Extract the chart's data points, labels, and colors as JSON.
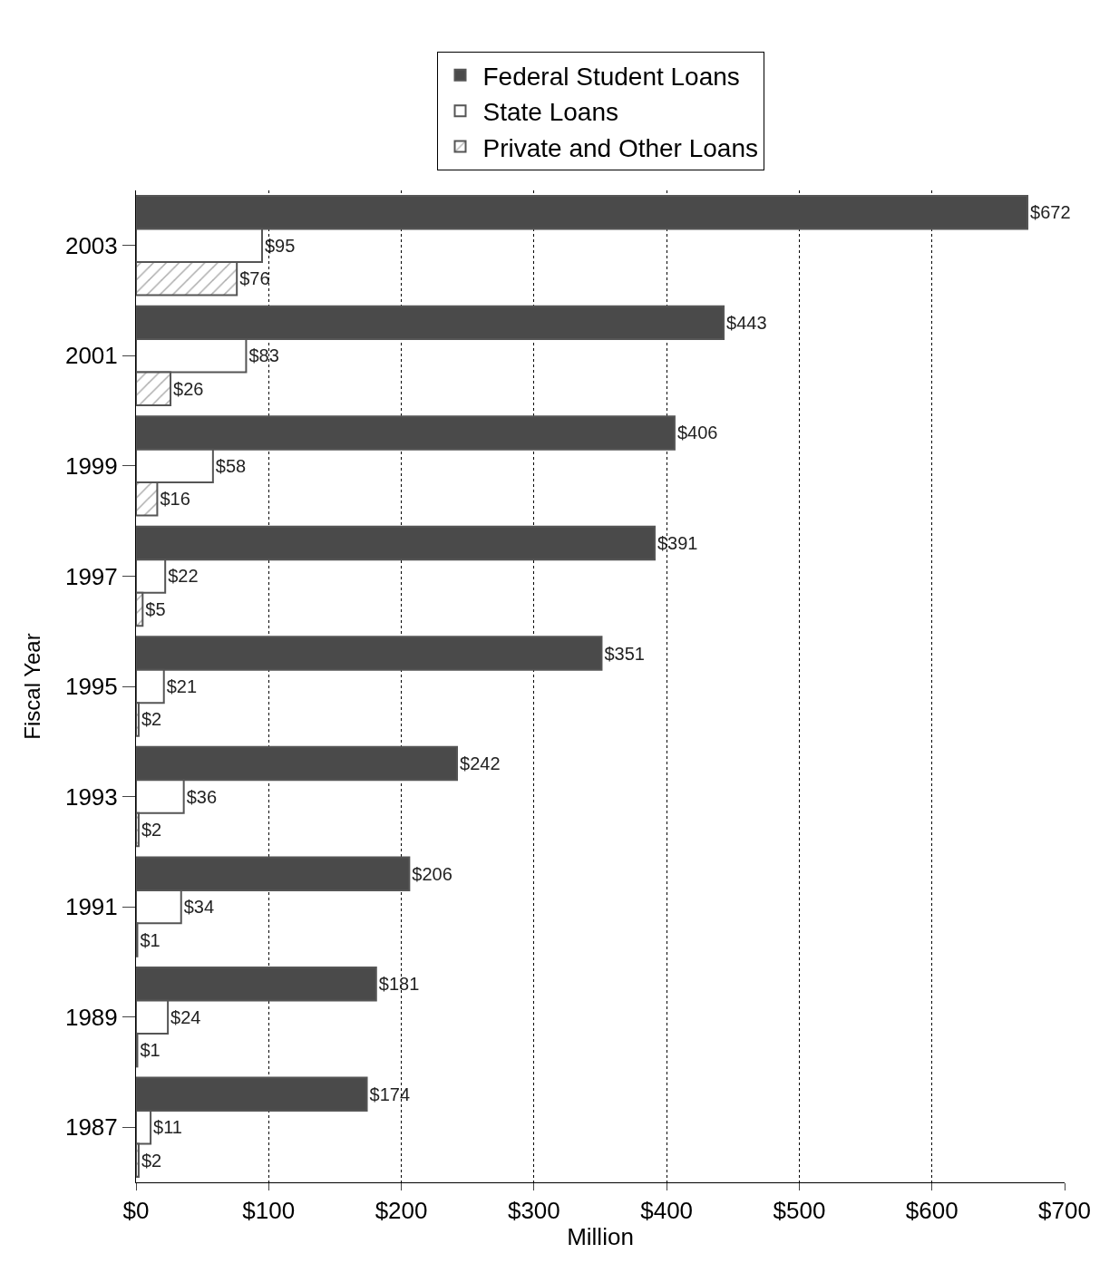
{
  "chart_data": {
    "type": "bar",
    "orientation": "horizontal",
    "xlabel": "Million",
    "ylabel": "Fiscal Year",
    "categories": [
      "2003",
      "2001",
      "1999",
      "1997",
      "1995",
      "1993",
      "1991",
      "1989",
      "1987"
    ],
    "series": [
      {
        "name": "Federal Student Loans",
        "color": "#4a4a4a",
        "values": [
          672,
          443,
          406,
          391,
          351,
          242,
          206,
          181,
          174
        ],
        "value_labels": [
          "$672",
          "$443",
          "$406",
          "$391",
          "$351",
          "$242",
          "$206",
          "$181",
          "$174"
        ]
      },
      {
        "name": "State Loans",
        "color": "#ffffff",
        "values": [
          95,
          83,
          58,
          22,
          21,
          36,
          34,
          24,
          11
        ],
        "value_labels": [
          "$95",
          "$83",
          "$58",
          "$22",
          "$21",
          "$36",
          "$34",
          "$24",
          "$11"
        ]
      },
      {
        "name": "Private and Other Loans",
        "color": "#555555",
        "values": [
          76,
          26,
          16,
          5,
          2,
          2,
          1,
          1,
          2
        ],
        "value_labels": [
          "$76",
          "$26",
          "$16",
          "$5",
          "$2",
          "$2",
          "$1",
          "$1",
          "$2"
        ]
      }
    ],
    "xlim": [
      0,
      700
    ],
    "xticks": [
      {
        "value": 0,
        "label": "$0"
      },
      {
        "value": 100,
        "label": "$100"
      },
      {
        "value": 200,
        "label": "$200"
      },
      {
        "value": 300,
        "label": "$300"
      },
      {
        "value": 400,
        "label": "$400"
      },
      {
        "value": 500,
        "label": "$500"
      },
      {
        "value": 600,
        "label": "$600"
      },
      {
        "value": 700,
        "label": "$700"
      }
    ],
    "grid": "x",
    "legend": "top"
  }
}
